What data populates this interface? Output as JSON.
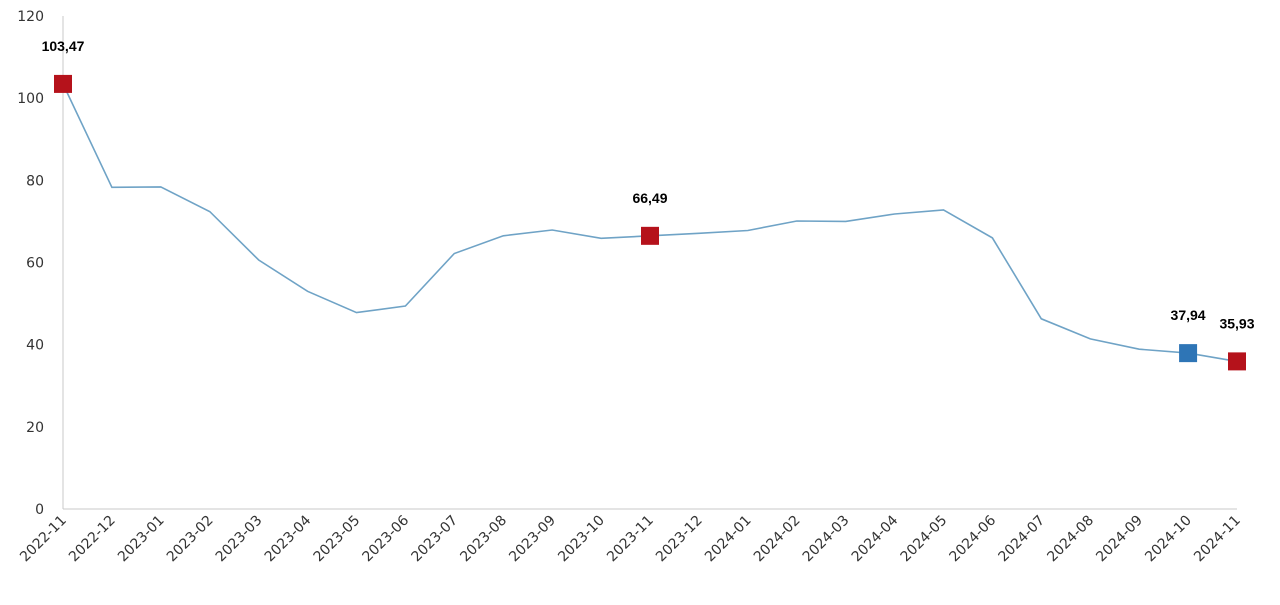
{
  "chart_data": {
    "type": "line",
    "title": "",
    "xlabel": "",
    "ylabel": "",
    "ylim": [
      0,
      120
    ],
    "yticks": [
      "0",
      "20",
      "40",
      "60",
      "80",
      "100",
      "120"
    ],
    "grid": false,
    "legend": "none",
    "categories": [
      "2022-11",
      "2022-12",
      "2023-01",
      "2023-02",
      "2023-03",
      "2023-04",
      "2023-05",
      "2023-06",
      "2023-07",
      "2023-08",
      "2023-09",
      "2023-10",
      "2023-11",
      "2023-12",
      "2024-01",
      "2024-02",
      "2024-03",
      "2024-04",
      "2024-05",
      "2024-06",
      "2024-07",
      "2024-08",
      "2024-09",
      "2024-10",
      "2024-11"
    ],
    "series": [
      {
        "color": "#6fa3c6",
        "values": [
          103.47,
          78.3,
          78.4,
          72.4,
          60.6,
          53.0,
          47.8,
          49.4,
          62.2,
          66.5,
          67.9,
          65.9,
          66.49,
          67.1,
          67.8,
          70.1,
          70.0,
          71.8,
          72.8,
          66.0,
          46.3,
          41.4,
          38.9,
          37.94,
          35.93
        ]
      }
    ],
    "highlights": [
      {
        "index": 0,
        "label": "103,47",
        "color": "#b5121b"
      },
      {
        "index": 12,
        "label": "66,49",
        "color": "#b5121b"
      },
      {
        "index": 23,
        "label": "37,94",
        "color": "#2e75b6"
      },
      {
        "index": 24,
        "label": "35,93",
        "color": "#b5121b"
      }
    ],
    "axis_color": "#c8c8c8"
  }
}
